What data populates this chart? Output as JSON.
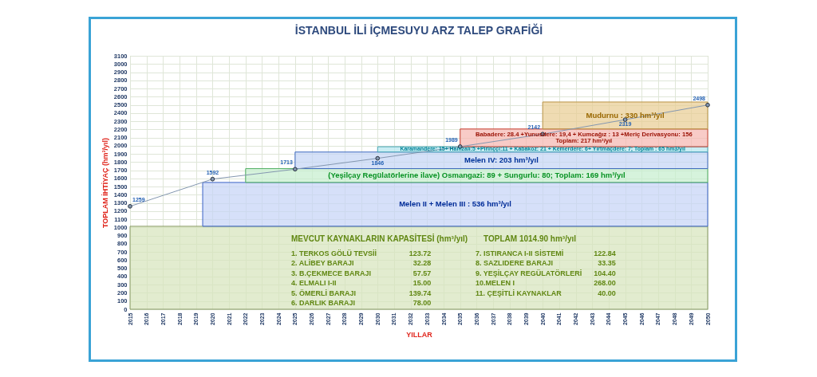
{
  "chart_data": {
    "type": "area",
    "title": "İSTANBUL İLİ İÇMESUYU ARZ TALEP GRAFİĞİ",
    "xlabel": "YILLAR",
    "ylabel": "TOPLAM İHTİYAÇ (hm³/yıl)",
    "xlim": [
      2015,
      2050
    ],
    "xticks": [
      2015,
      2016,
      2017,
      2018,
      2019,
      2020,
      2021,
      2022,
      2023,
      2024,
      2025,
      2026,
      2027,
      2028,
      2029,
      2030,
      2031,
      2032,
      2033,
      2034,
      2035,
      2036,
      2037,
      2038,
      2039,
      2040,
      2041,
      2042,
      2043,
      2044,
      2045,
      2046,
      2047,
      2048,
      2049,
      2050
    ],
    "ylim": [
      0,
      3100
    ],
    "yticks": [
      0,
      100,
      200,
      300,
      400,
      500,
      600,
      700,
      800,
      900,
      1000,
      1100,
      1200,
      1300,
      1400,
      1500,
      1600,
      1700,
      1800,
      1900,
      2000,
      2100,
      2200,
      2300,
      2400,
      2500,
      2600,
      2700,
      2800,
      2900,
      3000,
      3100
    ],
    "grid": true,
    "stacked": true,
    "series": [
      {
        "name": "MEVCUT KAYNAKLARIN KAPASİTESİ (hm³/yıl)",
        "color": "#d7e4bd",
        "x": [
          2015,
          2050
        ],
        "values": [
          1014.9,
          1014.9
        ]
      },
      {
        "name": "Melen II + Melen III : 536 hm³/yıl",
        "color": "#c6d4f7",
        "x": [
          2019.4,
          2050
        ],
        "values": [
          536,
          536
        ]
      },
      {
        "name": "(Yeşilçay Regülatörlerine ilave) Osmangazi: 89 + Sungurlu: 80; Toplam: 169 hm³/yıl",
        "color": "#c6efce",
        "x": [
          2022,
          2050
        ],
        "values": [
          169,
          169
        ]
      },
      {
        "name": "Melen IV: 203 hm³/yıl",
        "color": "#c5d5f5",
        "x": [
          2025,
          2050
        ],
        "values": [
          203,
          203
        ]
      },
      {
        "name": "Karamandere: 15+ Hamzalı:5 +Pirinççi:11 + Kabakoz: 21 + Kemerdere: 6+ Yırtmaçdere: 7; Toplam : 65 hm3/yıl",
        "color": "#b4e6ee",
        "x": [
          2030,
          2050
        ],
        "values": [
          65,
          65
        ]
      },
      {
        "name": "Babadere: 28.4 +Yunusdere: 19,4 + Kumcağız : 13 +Meriç Derivasyonu: 156\nToplam: 217 hm³/yıl",
        "color": "#f5b7b1",
        "x": [
          2035,
          2050
        ],
        "values": [
          217,
          217
        ]
      },
      {
        "name": "Mudurnu : 330 hm³/yıl",
        "color": "#e9cd94",
        "x": [
          2040,
          2050
        ],
        "values": [
          330,
          330
        ]
      },
      {
        "type": "line",
        "color": "#8497b0",
        "marker": "circle",
        "x": [
          2015,
          2020,
          2025,
          2030,
          2035,
          2040,
          2045,
          2050
        ],
        "values": [
          1259,
          1592,
          1713,
          1846,
          1989,
          2142,
          2319,
          2498
        ],
        "value_labels": [
          "1259",
          "1592",
          "1713",
          "1846",
          "1989",
          "2142",
          "2319",
          "2498"
        ]
      }
    ],
    "annotations": [
      "TOPLAM 1014.90 hm³/yıl",
      "1.  TERKOS GÖLÜ TEVSİİ\t123.72",
      "2. ALİBEY BARAJI\t32.28",
      "3. B.ÇEKMECE  BARAJI\t57.57",
      "4. ELMALI I-II\t15.00",
      "5. ÖMERLİ BARAJI\t139.74",
      "6. DARLIK BARAJI\t78.00",
      "7. ISTIRANCA I-II  SİSTEMİ\t122.84",
      "8. SAZLIDERE  BARAJI\t33.35",
      "9. YEŞİLÇAY REGÜLATÖRLERİ\t104.40",
      "10.MELEN I\t268.00",
      "11. ÇEŞİTLİ KAYNAKLAR\t40.00"
    ]
  }
}
